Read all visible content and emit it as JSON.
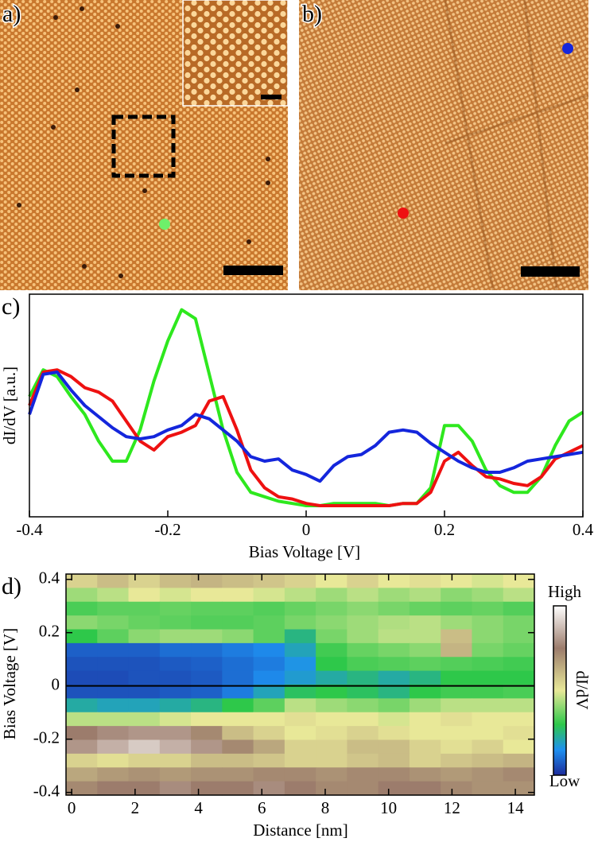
{
  "images": [
    {
      "panel_label": "a)"
    },
    {
      "panel_label": "b)"
    }
  ],
  "chart_data": [
    {
      "type": "line",
      "panel_label": "c)",
      "xlabel": "Bias Voltage [V]",
      "ylabel": "dI/dV [a.u.]",
      "x": [
        -0.4,
        -0.38,
        -0.36,
        -0.34,
        -0.32,
        -0.3,
        -0.28,
        -0.26,
        -0.24,
        -0.22,
        -0.2,
        -0.18,
        -0.16,
        -0.14,
        -0.12,
        -0.1,
        -0.08,
        -0.06,
        -0.04,
        -0.02,
        0,
        0.02,
        0.04,
        0.06,
        0.08,
        0.1,
        0.12,
        0.14,
        0.16,
        0.18,
        0.2,
        0.22,
        0.24,
        0.26,
        0.28,
        0.3,
        0.32,
        0.34,
        0.36,
        0.38,
        0.4
      ],
      "xlim": [
        -0.4,
        0.4
      ],
      "xticks": [
        -0.4,
        -0.2,
        0,
        0.2,
        0.4
      ],
      "ylim": [
        0,
        1
      ],
      "series": [
        {
          "color": "#2ee81e",
          "values": [
            0.54,
            0.66,
            0.63,
            0.54,
            0.46,
            0.34,
            0.25,
            0.25,
            0.39,
            0.61,
            0.79,
            0.93,
            0.89,
            0.64,
            0.39,
            0.2,
            0.11,
            0.09,
            0.07,
            0.06,
            0.05,
            0.05,
            0.06,
            0.06,
            0.06,
            0.06,
            0.05,
            0.06,
            0.06,
            0.13,
            0.41,
            0.41,
            0.34,
            0.21,
            0.14,
            0.11,
            0.11,
            0.18,
            0.32,
            0.43,
            0.47
          ]
        },
        {
          "color": "#ee1111",
          "values": [
            0.5,
            0.65,
            0.66,
            0.63,
            0.58,
            0.56,
            0.52,
            0.43,
            0.34,
            0.3,
            0.36,
            0.38,
            0.41,
            0.52,
            0.54,
            0.39,
            0.21,
            0.13,
            0.09,
            0.08,
            0.06,
            0.05,
            0.05,
            0.05,
            0.05,
            0.05,
            0.05,
            0.06,
            0.06,
            0.11,
            0.25,
            0.29,
            0.23,
            0.18,
            0.17,
            0.15,
            0.14,
            0.18,
            0.26,
            0.29,
            0.32
          ]
        },
        {
          "color": "#1426dc",
          "values": [
            0.46,
            0.64,
            0.65,
            0.57,
            0.5,
            0.45,
            0.4,
            0.36,
            0.35,
            0.36,
            0.39,
            0.41,
            0.46,
            0.44,
            0.39,
            0.34,
            0.27,
            0.25,
            0.26,
            0.21,
            0.19,
            0.16,
            0.23,
            0.27,
            0.28,
            0.32,
            0.38,
            0.39,
            0.38,
            0.33,
            0.29,
            0.25,
            0.22,
            0.2,
            0.2,
            0.22,
            0.25,
            0.26,
            0.27,
            0.28,
            0.29
          ]
        }
      ]
    },
    {
      "type": "heatmap",
      "panel_label": "d)",
      "xlabel": "Distance [nm]",
      "ylabel": "Bias Voltage [V]",
      "xlim": [
        -0.18,
        14.6
      ],
      "xticks": [
        0,
        2,
        4,
        6,
        8,
        10,
        12,
        14
      ],
      "ylim": [
        -0.41,
        0.42
      ],
      "yticks": [
        0.4,
        0.2,
        0,
        -0.2,
        -0.4
      ],
      "hline": 0,
      "z": [
        [
          0.55,
          0.6,
          0.55,
          0.6,
          0.62,
          0.6,
          0.58,
          0.55,
          0.5,
          0.55,
          0.5,
          0.52,
          0.5,
          0.48,
          0.5
        ],
        [
          0.42,
          0.45,
          0.5,
          0.48,
          0.5,
          0.5,
          0.48,
          0.45,
          0.42,
          0.45,
          0.42,
          0.44,
          0.4,
          0.42,
          0.45
        ],
        [
          0.33,
          0.35,
          0.35,
          0.36,
          0.35,
          0.35,
          0.34,
          0.36,
          0.38,
          0.4,
          0.38,
          0.36,
          0.35,
          0.36,
          0.34
        ],
        [
          0.4,
          0.38,
          0.36,
          0.35,
          0.34,
          0.34,
          0.35,
          0.38,
          0.4,
          0.42,
          0.44,
          0.45,
          0.42,
          0.4,
          0.38
        ],
        [
          0.3,
          0.35,
          0.4,
          0.42,
          0.42,
          0.4,
          0.35,
          0.25,
          0.38,
          0.42,
          0.45,
          0.45,
          0.6,
          0.4,
          0.38
        ],
        [
          0.08,
          0.08,
          0.08,
          0.1,
          0.1,
          0.12,
          0.14,
          0.2,
          0.32,
          0.36,
          0.38,
          0.4,
          0.62,
          0.38,
          0.36
        ],
        [
          0.06,
          0.06,
          0.06,
          0.07,
          0.08,
          0.1,
          0.12,
          0.16,
          0.3,
          0.33,
          0.34,
          0.35,
          0.34,
          0.33,
          0.32
        ],
        [
          0.05,
          0.05,
          0.06,
          0.06,
          0.07,
          0.1,
          0.14,
          0.18,
          0.22,
          0.25,
          0.22,
          0.25,
          0.3,
          0.3,
          0.3
        ],
        [
          0.06,
          0.06,
          0.06,
          0.07,
          0.08,
          0.12,
          0.2,
          0.28,
          0.3,
          0.28,
          0.25,
          0.3,
          0.32,
          0.32,
          0.33
        ],
        [
          0.22,
          0.2,
          0.2,
          0.22,
          0.25,
          0.3,
          0.35,
          0.45,
          0.42,
          0.4,
          0.38,
          0.42,
          0.45,
          0.45,
          0.45
        ],
        [
          0.45,
          0.45,
          0.45,
          0.48,
          0.5,
          0.5,
          0.5,
          0.52,
          0.5,
          0.5,
          0.48,
          0.5,
          0.52,
          0.5,
          0.5
        ],
        [
          0.75,
          0.78,
          0.8,
          0.8,
          0.72,
          0.6,
          0.55,
          0.5,
          0.52,
          0.55,
          0.52,
          0.5,
          0.5,
          0.5,
          0.52
        ],
        [
          0.8,
          0.85,
          0.9,
          0.85,
          0.8,
          0.72,
          0.65,
          0.55,
          0.55,
          0.6,
          0.6,
          0.55,
          0.52,
          0.55,
          0.5
        ],
        [
          0.55,
          0.52,
          0.55,
          0.55,
          0.6,
          0.6,
          0.58,
          0.55,
          0.55,
          0.58,
          0.6,
          0.55,
          0.58,
          0.6,
          0.62
        ],
        [
          0.65,
          0.68,
          0.7,
          0.68,
          0.7,
          0.7,
          0.72,
          0.72,
          0.7,
          0.72,
          0.72,
          0.7,
          0.68,
          0.7,
          0.72
        ],
        [
          0.72,
          0.75,
          0.75,
          0.78,
          0.75,
          0.75,
          0.78,
          0.75,
          0.72,
          0.72,
          0.75,
          0.75,
          0.72,
          0.7,
          0.7
        ]
      ],
      "colormap": [
        {
          "pos": 0,
          "color": "#1c2a9a"
        },
        {
          "pos": 0.15,
          "color": "#1e90f0"
        },
        {
          "pos": 0.3,
          "color": "#2ec84a"
        },
        {
          "pos": 0.5,
          "color": "#e8e898"
        },
        {
          "pos": 0.75,
          "color": "#9c7c6c"
        },
        {
          "pos": 1,
          "color": "#ffffff"
        }
      ],
      "colorbar": {
        "label": "dI/dV",
        "high": "High",
        "low": "Low"
      }
    }
  ]
}
